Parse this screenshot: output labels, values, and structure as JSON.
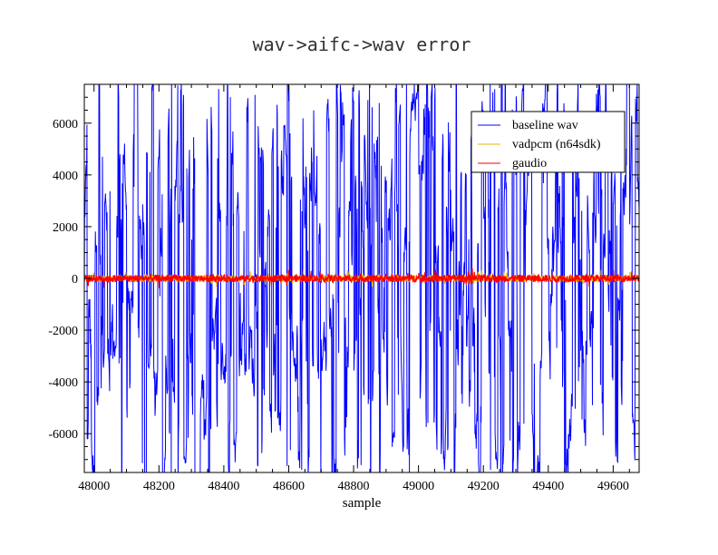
{
  "chart_data": {
    "type": "line",
    "title": "wav->aifc->wav error",
    "xlabel": "sample",
    "ylabel": "",
    "xlim": [
      47970,
      49680
    ],
    "ylim": [
      -7500,
      7500
    ],
    "x_ticks": [
      48000,
      48200,
      48400,
      48600,
      48800,
      49000,
      49200,
      49400,
      49600
    ],
    "x_tick_labels": [
      "48000",
      "48200",
      "48400",
      "48600",
      "48800",
      "49000",
      "49200",
      "49400",
      "49600"
    ],
    "y_ticks": [
      -6000,
      -4000,
      -2000,
      0,
      2000,
      4000,
      6000
    ],
    "y_tick_labels": [
      "-6000",
      "-4000",
      "-2000",
      "0",
      "2000",
      "4000",
      "6000"
    ],
    "x_step": 1,
    "legend_position": "top-right",
    "grid": false,
    "series": [
      {
        "name": "baseline wav",
        "color": "#0000ff",
        "amplitude": 16000,
        "kind": "wide"
      },
      {
        "name": "vadpcm (n64sdk)",
        "color": "#e6b400",
        "amplitude": 120,
        "kind": "noise"
      },
      {
        "name": "gaudio",
        "color": "#ff0000",
        "amplitude": 140,
        "kind": "noise"
      }
    ]
  }
}
